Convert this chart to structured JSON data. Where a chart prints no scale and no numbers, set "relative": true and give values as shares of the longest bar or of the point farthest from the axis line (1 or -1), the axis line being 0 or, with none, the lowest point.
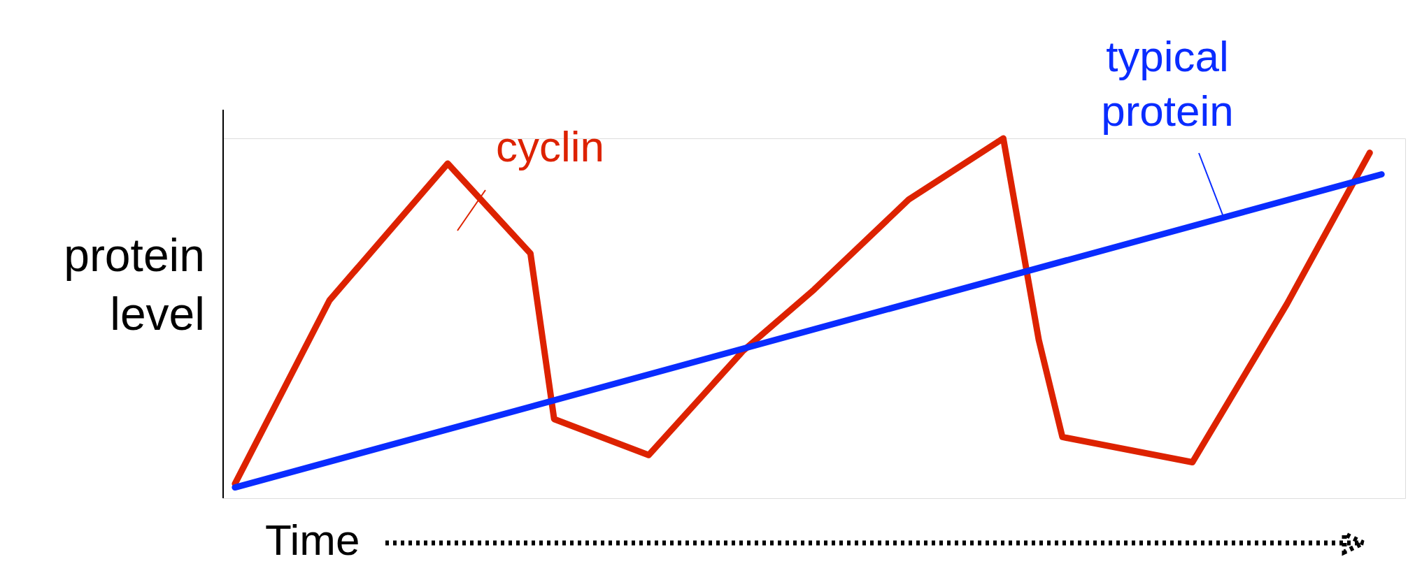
{
  "chart_data": {
    "type": "line",
    "relative": true,
    "xlabel": "Time",
    "ylabel": "protein level",
    "tick_labels": false,
    "marker": "none",
    "line_style": "solid",
    "categories": [
      null,
      null,
      null,
      null,
      null,
      null,
      null,
      null,
      null,
      null,
      null,
      null,
      null,
      null,
      null,
      null,
      null,
      null,
      null,
      null,
      null,
      null,
      null,
      null,
      null,
      null,
      null,
      null,
      null,
      null,
      null,
      null,
      null,
      null,
      null,
      null,
      null,
      null,
      null,
      null,
      null,
      null,
      null,
      null,
      null,
      null,
      null,
      null,
      null,
      null,
      null,
      null,
      null,
      null,
      null,
      null,
      null,
      null,
      null,
      null,
      null,
      null,
      null,
      null,
      null,
      null,
      null,
      null,
      null,
      null,
      null,
      null,
      null,
      null,
      null,
      null,
      null,
      null,
      null,
      null,
      null,
      null,
      null,
      null,
      null,
      null,
      null,
      null,
      null,
      null,
      null,
      null,
      null,
      null,
      null,
      null,
      null,
      null,
      null,
      null,
      null
    ],
    "series": [
      {
        "name": "cyclin",
        "color": "#dd2200",
        "values": [
          null,
          0.04,
          null,
          null,
          null,
          null,
          null,
          null,
          null,
          0.55,
          null,
          null,
          null,
          null,
          null,
          null,
          null,
          null,
          null,
          0.93,
          null,
          null,
          null,
          null,
          null,
          null,
          0.68,
          null,
          0.22,
          null,
          null,
          null,
          null,
          null,
          null,
          null,
          0.12,
          null,
          null,
          null,
          null,
          null,
          null,
          null,
          0.41,
          null,
          null,
          null,
          null,
          null,
          0.58,
          null,
          null,
          null,
          null,
          null,
          null,
          null,
          0.83,
          null,
          null,
          null,
          null,
          null,
          null,
          null,
          1.0,
          null,
          null,
          0.44,
          null,
          0.17,
          null,
          null,
          null,
          null,
          null,
          null,
          null,
          null,
          null,
          null,
          0.1,
          null,
          null,
          null,
          null,
          null,
          null,
          null,
          0.54,
          null,
          null,
          null,
          null,
          null,
          null,
          0.96,
          null,
          null,
          null
        ]
      },
      {
        "name": "typical protein",
        "color": "#0a2cff",
        "values": [
          null,
          0.03,
          null,
          null,
          null,
          null,
          null,
          null,
          null,
          null,
          null,
          null,
          null,
          null,
          null,
          null,
          null,
          null,
          null,
          null,
          null,
          null,
          null,
          null,
          null,
          null,
          null,
          null,
          null,
          null,
          null,
          null,
          null,
          null,
          null,
          null,
          null,
          null,
          null,
          null,
          null,
          null,
          null,
          null,
          null,
          null,
          null,
          null,
          null,
          null,
          null,
          null,
          null,
          null,
          null,
          null,
          null,
          null,
          null,
          null,
          null,
          null,
          null,
          null,
          null,
          null,
          null,
          null,
          null,
          null,
          null,
          null,
          null,
          null,
          null,
          null,
          null,
          null,
          null,
          null,
          null,
          null,
          null,
          null,
          null,
          null,
          null,
          null,
          null,
          null,
          null,
          null,
          null,
          null,
          null,
          null,
          null,
          null,
          0.9,
          null,
          null
        ]
      }
    ]
  }
}
